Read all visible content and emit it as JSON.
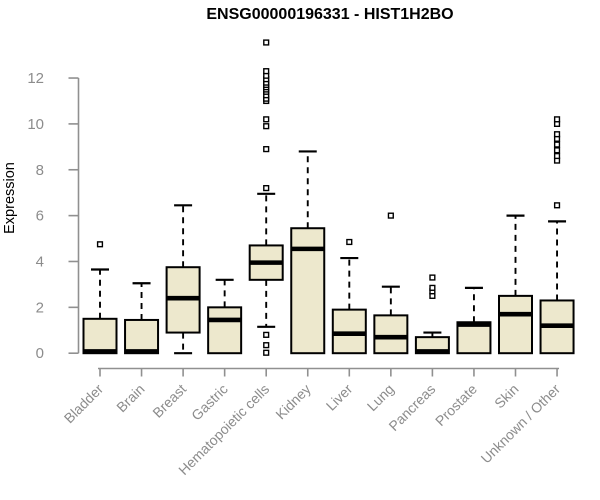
{
  "chart_data": {
    "type": "box",
    "title": "ENSG00000196331 - HIST1H2BO",
    "xlabel": "",
    "ylabel": "Expression",
    "ylim": [
      0,
      13.6
    ],
    "yticks": [
      0,
      2,
      4,
      6,
      8,
      10,
      12
    ],
    "grid": false,
    "legend": false,
    "categories": [
      "Bladder",
      "Brain",
      "Breast",
      "Gastric",
      "Hematopoietic cells",
      "Kidney",
      "Liver",
      "Lung",
      "Pancreas",
      "Prostate",
      "Skin",
      "Unknown / Other"
    ],
    "boxes": [
      {
        "label": "Bladder",
        "whislo": 0,
        "q1": 0,
        "med": 0.08,
        "q3": 1.5,
        "whishi": 3.65,
        "outliers": [
          4.75
        ]
      },
      {
        "label": "Brain",
        "whislo": 0,
        "q1": 0,
        "med": 0.08,
        "q3": 1.45,
        "whishi": 3.05,
        "outliers": []
      },
      {
        "label": "Breast",
        "whislo": 0,
        "q1": 0.9,
        "med": 2.4,
        "q3": 3.75,
        "whishi": 6.45,
        "outliers": []
      },
      {
        "label": "Gastric",
        "whislo": 0,
        "q1": 0,
        "med": 1.45,
        "q3": 2.0,
        "whishi": 3.2,
        "outliers": []
      },
      {
        "label": "Hematopoietic cells",
        "whislo": 1.15,
        "q1": 3.2,
        "med": 3.95,
        "q3": 4.7,
        "whishi": 6.95,
        "outliers": [
          0.02,
          0.35,
          0.8,
          7.2,
          8.9,
          9.9,
          10.2,
          11.0,
          11.1,
          11.25,
          11.4,
          11.5,
          11.6,
          11.7,
          11.8,
          11.95,
          12.1,
          12.3,
          13.55
        ]
      },
      {
        "label": "Kidney",
        "whislo": 0,
        "q1": 0,
        "med": 4.55,
        "q3": 5.45,
        "whishi": 8.8,
        "outliers": []
      },
      {
        "label": "Liver",
        "whislo": 0,
        "q1": 0,
        "med": 0.85,
        "q3": 1.9,
        "whishi": 4.15,
        "outliers": [
          4.85
        ]
      },
      {
        "label": "Lung",
        "whislo": 0,
        "q1": 0,
        "med": 0.7,
        "q3": 1.65,
        "whishi": 2.9,
        "outliers": [
          6.0
        ]
      },
      {
        "label": "Pancreas",
        "whislo": 0,
        "q1": 0,
        "med": 0.08,
        "q3": 0.7,
        "whishi": 0.9,
        "outliers": [
          2.5,
          2.7,
          2.85,
          3.3
        ]
      },
      {
        "label": "Prostate",
        "whislo": 0,
        "q1": 0,
        "med": 1.25,
        "q3": 1.35,
        "whishi": 2.85,
        "outliers": []
      },
      {
        "label": "Skin",
        "whislo": 0,
        "q1": 0,
        "med": 1.7,
        "q3": 2.5,
        "whishi": 6.0,
        "outliers": []
      },
      {
        "label": "Unknown / Other",
        "whislo": 0,
        "q1": 0,
        "med": 1.2,
        "q3": 2.3,
        "whishi": 5.75,
        "outliers": [
          6.45,
          8.4,
          8.6,
          8.85,
          9.1,
          9.35,
          9.55,
          10.0,
          10.2
        ]
      }
    ],
    "styles": {
      "box_fill": "#EDE8CD",
      "box_stroke": "#000000",
      "median_color": "#000000",
      "whisker_color": "#000000",
      "outlier_fill": "#FFFFFF",
      "axis_line_color": "#909090",
      "axis_text_color": "#8C8C8C",
      "title_color": "#000000",
      "background": "#FFFFFF"
    }
  }
}
